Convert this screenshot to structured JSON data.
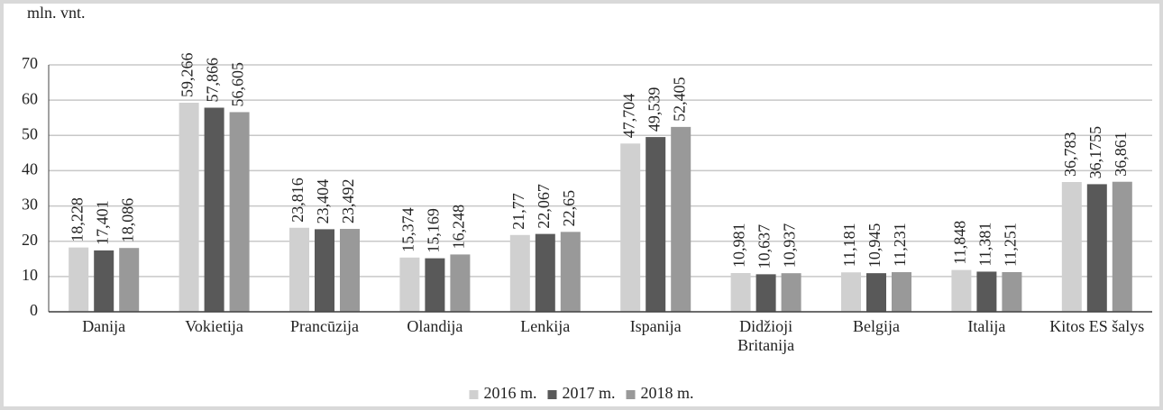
{
  "chart_data": {
    "type": "bar",
    "y_label": "mln. vnt.",
    "categories": [
      "Danija",
      "Vokietija",
      "Prancūzija",
      "Olandija",
      "Lenkija",
      "Ispanija",
      "Didžioji Britanija",
      "Belgija",
      "Italija",
      "Kitos ES šalys"
    ],
    "series": [
      {
        "name": "2016 m.",
        "color": "#d0d0d0",
        "values": [
          18.228,
          59.266,
          23.816,
          15.374,
          21.77,
          47.704,
          10.981,
          11.181,
          11.848,
          36.783
        ],
        "value_labels": [
          "18,228",
          "59,266",
          "23,816",
          "15,374",
          "21,77",
          "47,704",
          "10,981",
          "11,181",
          "11,848",
          "36,783"
        ]
      },
      {
        "name": "2017 m.",
        "color": "#595959",
        "values": [
          17.401,
          57.866,
          23.404,
          15.169,
          22.067,
          49.539,
          10.637,
          10.945,
          11.381,
          36.1755
        ],
        "value_labels": [
          "17,401",
          "57,866",
          "23,404",
          "15,169",
          "22,067",
          "49,539",
          "10,637",
          "10,945",
          "11,381",
          "36,1755"
        ]
      },
      {
        "name": "2018 m.",
        "color": "#999999",
        "values": [
          18.086,
          56.605,
          23.492,
          16.248,
          22.65,
          52.405,
          10.937,
          11.231,
          11.251,
          36.861
        ],
        "value_labels": [
          "18,086",
          "56,605",
          "23,492",
          "16,248",
          "22,65",
          "52,405",
          "10,937",
          "11,231",
          "11,251",
          "36,861"
        ]
      }
    ],
    "ylim": [
      0,
      70
    ],
    "yticks": [
      0,
      10,
      20,
      30,
      40,
      50,
      60,
      70
    ],
    "grid": true,
    "legend": "bottom"
  }
}
